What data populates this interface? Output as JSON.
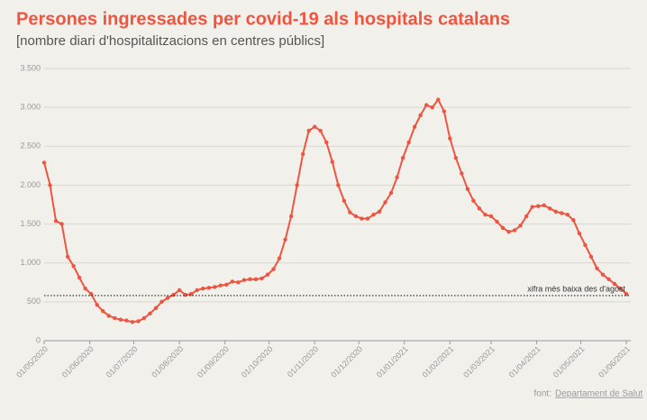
{
  "chart_data": {
    "type": "line",
    "title": "Persones ingressades per covid-19 als hospitals catalans",
    "subtitle": "[nombre diari d'hospitalitzacions en centres públics]",
    "x": [
      "01/05/2020",
      "05/05/2020",
      "09/05/2020",
      "13/05/2020",
      "17/05/2020",
      "21/05/2020",
      "25/05/2020",
      "29/05/2020",
      "02/06/2020",
      "06/06/2020",
      "10/06/2020",
      "14/06/2020",
      "18/06/2020",
      "22/06/2020",
      "26/06/2020",
      "30/06/2020",
      "04/07/2020",
      "08/07/2020",
      "12/07/2020",
      "16/07/2020",
      "20/07/2020",
      "24/07/2020",
      "28/07/2020",
      "01/08/2020",
      "05/08/2020",
      "09/08/2020",
      "13/08/2020",
      "17/08/2020",
      "21/08/2020",
      "25/08/2020",
      "29/08/2020",
      "02/09/2020",
      "06/09/2020",
      "10/09/2020",
      "14/09/2020",
      "18/09/2020",
      "22/09/2020",
      "26/09/2020",
      "30/09/2020",
      "04/10/2020",
      "08/10/2020",
      "12/10/2020",
      "16/10/2020",
      "20/10/2020",
      "24/10/2020",
      "28/10/2020",
      "01/11/2020",
      "05/11/2020",
      "09/11/2020",
      "13/11/2020",
      "17/11/2020",
      "21/11/2020",
      "25/11/2020",
      "29/11/2020",
      "03/12/2020",
      "07/12/2020",
      "11/12/2020",
      "15/12/2020",
      "19/12/2020",
      "23/12/2020",
      "27/12/2020",
      "31/12/2020",
      "04/01/2021",
      "08/01/2021",
      "12/01/2021",
      "16/01/2021",
      "20/01/2021",
      "24/01/2021",
      "28/01/2021",
      "01/02/2021",
      "05/02/2021",
      "09/02/2021",
      "13/02/2021",
      "17/02/2021",
      "21/02/2021",
      "25/02/2021",
      "01/03/2021",
      "05/03/2021",
      "09/03/2021",
      "13/03/2021",
      "17/03/2021",
      "21/03/2021",
      "25/03/2021",
      "29/03/2021",
      "02/04/2021",
      "06/04/2021",
      "10/04/2021",
      "14/04/2021",
      "18/04/2021",
      "22/04/2021",
      "26/04/2021",
      "30/04/2021",
      "04/05/2021",
      "08/05/2021",
      "12/05/2021",
      "16/05/2021",
      "20/05/2021",
      "24/05/2021",
      "28/05/2021",
      "01/06/2021"
    ],
    "values": [
      2290,
      2000,
      1540,
      1500,
      1080,
      960,
      810,
      670,
      600,
      460,
      380,
      320,
      290,
      270,
      260,
      240,
      250,
      290,
      350,
      420,
      500,
      550,
      590,
      650,
      590,
      600,
      650,
      670,
      680,
      690,
      710,
      720,
      760,
      750,
      780,
      790,
      790,
      800,
      850,
      920,
      1060,
      1300,
      1600,
      2000,
      2400,
      2700,
      2750,
      2700,
      2550,
      2300,
      2000,
      1800,
      1650,
      1600,
      1570,
      1570,
      1620,
      1660,
      1780,
      1900,
      2100,
      2350,
      2550,
      2750,
      2900,
      3030,
      3000,
      3100,
      2950,
      2600,
      2350,
      2150,
      1950,
      1800,
      1700,
      1620,
      1600,
      1530,
      1450,
      1400,
      1420,
      1480,
      1600,
      1720,
      1730,
      1740,
      1700,
      1660,
      1640,
      1620,
      1550,
      1380,
      1230,
      1080,
      930,
      850,
      790,
      730,
      670,
      600
    ],
    "color": "#ee5541",
    "xlim": [
      "01/05/2020",
      "04/06/2021"
    ],
    "xticks": [
      "01/05/2020",
      "01/06/2020",
      "01/07/2020",
      "01/08/2020",
      "01/09/2020",
      "01/10/2020",
      "01/11/2020",
      "01/12/2020",
      "01/01/2021",
      "01/02/2021",
      "01/03/2021",
      "01/04/2021",
      "01/05/2021",
      "01/06/2021"
    ],
    "ylim": [
      0,
      3500
    ],
    "yticks": [
      0,
      500,
      {
        "value": 1000,
        "label": "1.000"
      },
      {
        "value": 1500,
        "label": "1.500"
      },
      {
        "value": 2000,
        "label": "2.000"
      },
      {
        "value": 2500,
        "label": "2.500"
      },
      {
        "value": 3000,
        "label": "3.000"
      },
      {
        "value": 3500,
        "label": "3.500"
      }
    ],
    "grid": true,
    "reference_line": {
      "value": 580,
      "label": "xifra més baixa des d'agost"
    },
    "source_prefix": "font:",
    "source": "Departament de Salut"
  }
}
